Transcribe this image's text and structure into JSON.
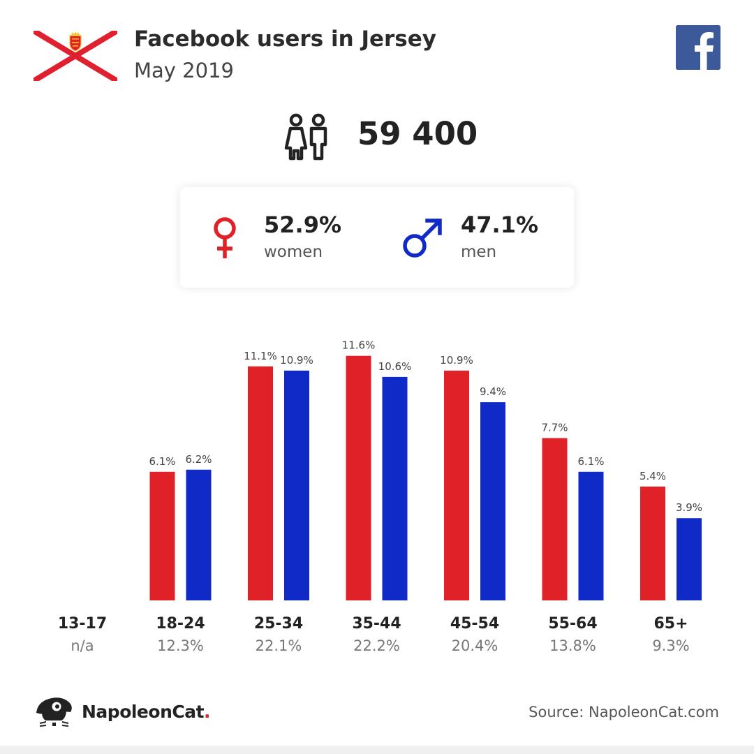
{
  "header": {
    "title": "Facebook users in Jersey",
    "subtitle": "May 2019",
    "flag_icon": "jersey-flag-icon",
    "brand_icon": "facebook-icon"
  },
  "total": {
    "icon": "people-icon",
    "value": "59 400"
  },
  "gender": {
    "women": {
      "percent": "52.9%",
      "label": "women",
      "icon": "female-symbol-icon",
      "color": "#e02128"
    },
    "men": {
      "percent": "47.1%",
      "label": "men",
      "icon": "male-symbol-icon",
      "color": "#0f2ac6"
    }
  },
  "chart_data": {
    "type": "bar",
    "categories": [
      "13-17",
      "18-24",
      "25-34",
      "35-44",
      "45-54",
      "55-64",
      "65+"
    ],
    "category_shares": [
      "n/a",
      "12.3%",
      "22.1%",
      "22.2%",
      "20.4%",
      "13.8%",
      "9.3%"
    ],
    "series": [
      {
        "name": "women",
        "color": "#e02128",
        "values": [
          null,
          6.1,
          11.1,
          11.6,
          10.9,
          7.7,
          5.4
        ]
      },
      {
        "name": "men",
        "color": "#0f2ac6",
        "values": [
          null,
          6.2,
          10.9,
          10.6,
          9.4,
          6.1,
          3.9
        ]
      }
    ],
    "value_labels": {
      "women": [
        "",
        "6.1%",
        "11.1%",
        "11.6%",
        "10.9%",
        "7.7%",
        "5.4%"
      ],
      "men": [
        "",
        "6.2%",
        "10.9%",
        "10.6%",
        "9.4%",
        "6.1%",
        "3.9%"
      ]
    },
    "title": "",
    "xlabel": "",
    "ylabel": "",
    "ylim": [
      0,
      12
    ],
    "grid": false
  },
  "footer": {
    "logo_icon": "napoleoncat-logo-icon",
    "brand_name": "NapoleonCat",
    "brand_dot": ".",
    "source": "Source: NapoleonCat.com"
  }
}
